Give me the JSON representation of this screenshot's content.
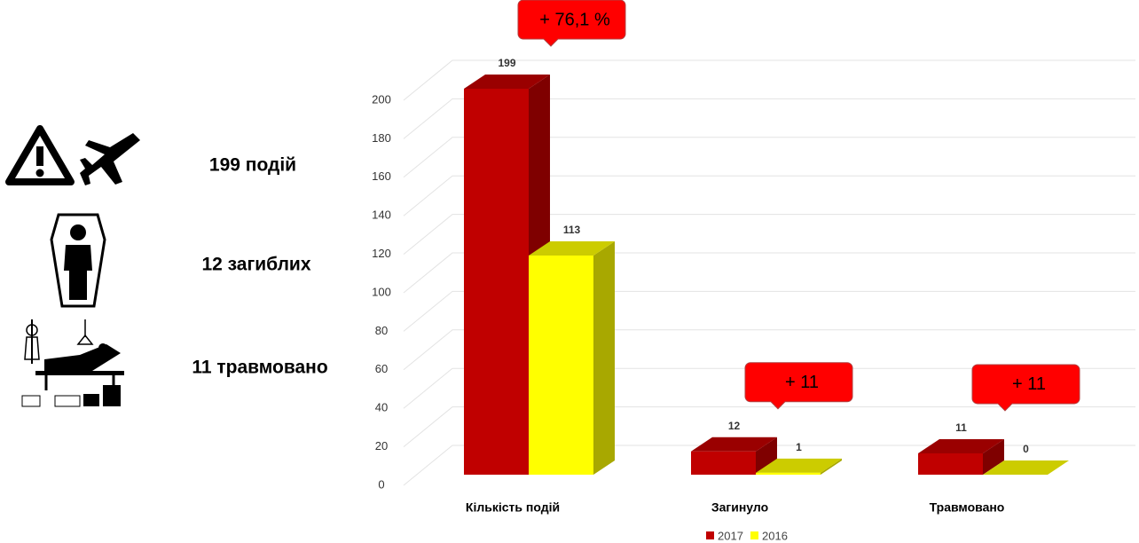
{
  "side_panel": {
    "items": [
      "199 подій",
      "12 загиблих",
      "11 травмовано"
    ]
  },
  "chart_data": {
    "type": "bar3d",
    "categories": [
      "Кількість подій",
      "Загинуло",
      "Травмовано"
    ],
    "series": [
      {
        "name": "2017",
        "color": "#c00000",
        "values": [
          199,
          12,
          11
        ]
      },
      {
        "name": "2016",
        "color": "#ffff00",
        "values": [
          113,
          1,
          0
        ]
      }
    ],
    "annotations": [
      "+ 76,1 %",
      "+ 11",
      "+ 11"
    ],
    "ylim": [
      0,
      200
    ],
    "yticks": [
      0,
      20,
      40,
      60,
      80,
      100,
      120,
      140,
      160,
      180,
      200
    ],
    "grid": true
  }
}
